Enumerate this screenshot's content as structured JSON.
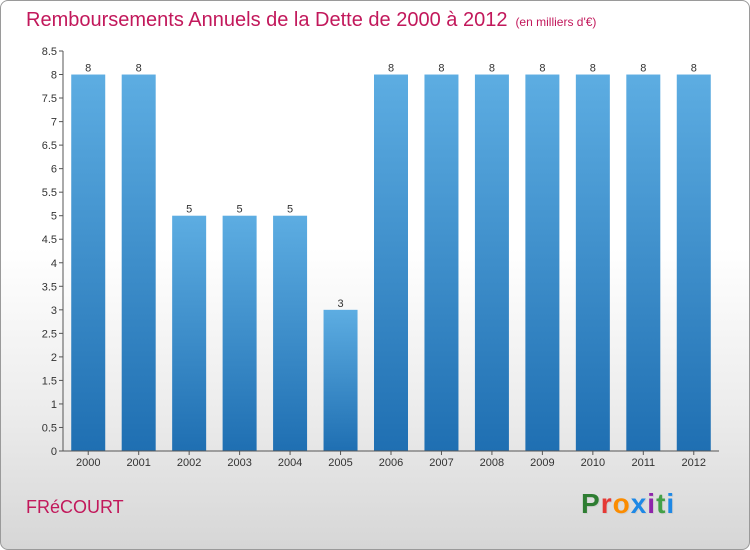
{
  "header": {
    "title": "Remboursements Annuels de la Dette de 2000 à 2012",
    "unit": "(en milliers d'€)"
  },
  "footer": {
    "commune": "FRéCOURT",
    "brand_letters": [
      "P",
      "r",
      "o",
      "x",
      "i",
      "t",
      "i"
    ],
    "brand_colors": [
      "#2e7d32",
      "#e53935",
      "#fb8c00",
      "#1e88e5",
      "#8e24aa",
      "#43a047",
      "#1e88e5"
    ]
  },
  "colors": {
    "title": "#c2185b",
    "bar_light": "#5dade2",
    "bar_dark": "#1f6fb2",
    "axis": "#555555"
  },
  "chart_data": {
    "type": "bar",
    "title": "Remboursements Annuels de la Dette de 2000 à 2012",
    "ylabel": "(en milliers d'€)",
    "categories": [
      "2000",
      "2001",
      "2002",
      "2003",
      "2004",
      "2005",
      "2006",
      "2007",
      "2008",
      "2009",
      "2010",
      "2011",
      "2012"
    ],
    "values": [
      8,
      8,
      5,
      5,
      5,
      3,
      8,
      8,
      8,
      8,
      8,
      8,
      8
    ],
    "data_labels": [
      "8",
      "8",
      "5",
      "5",
      "5",
      "3",
      "8",
      "8",
      "8",
      "8",
      "8",
      "8",
      "8"
    ],
    "yticks": [
      "0",
      "0.5",
      "1",
      "1.5",
      "2",
      "2.5",
      "3",
      "3.5",
      "4",
      "4.5",
      "5",
      "5.5",
      "6",
      "6.5",
      "7",
      "7.5",
      "8",
      "8.5"
    ],
    "ylim": [
      0,
      8.5
    ],
    "grid": false,
    "legend": "none"
  }
}
